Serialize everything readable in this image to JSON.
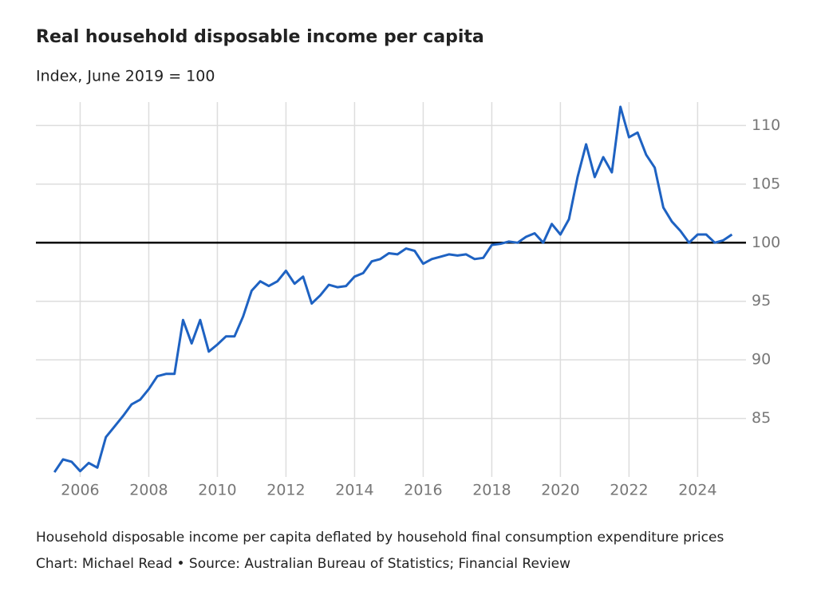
{
  "chart_data": {
    "type": "line",
    "title": "Real household disposable income per capita",
    "subtitle": "Index, June 2019 = 100",
    "notes": [
      "Household disposable income per capita deflated by household final consumption expenditure prices",
      "Chart: Michael Read • Source: Australian Bureau of Statistics; Financial Review"
    ],
    "x": [
      2005.25,
      2005.5,
      2005.75,
      2006,
      2006.25,
      2006.5,
      2006.75,
      2007,
      2007.25,
      2007.5,
      2007.75,
      2008,
      2008.25,
      2008.5,
      2008.75,
      2009,
      2009.25,
      2009.5,
      2009.75,
      2010,
      2010.25,
      2010.5,
      2010.75,
      2011,
      2011.25,
      2011.5,
      2011.75,
      2012,
      2012.25,
      2012.5,
      2012.75,
      2013,
      2013.25,
      2013.5,
      2013.75,
      2014,
      2014.25,
      2014.5,
      2014.75,
      2015,
      2015.25,
      2015.5,
      2015.75,
      2016,
      2016.25,
      2016.5,
      2016.75,
      2017,
      2017.25,
      2017.5,
      2017.75,
      2018,
      2018.25,
      2018.5,
      2018.75,
      2019,
      2019.25,
      2019.5,
      2019.75,
      2020,
      2020.25,
      2020.5,
      2020.75,
      2021,
      2021.25,
      2021.5,
      2021.75,
      2022,
      2022.25,
      2022.5,
      2022.75,
      2023,
      2023.25,
      2023.5,
      2023.75,
      2024,
      2024.25,
      2024.5,
      2024.75,
      2025
    ],
    "values": [
      80.4,
      81.5,
      81.3,
      80.5,
      81.2,
      80.8,
      83.4,
      84.3,
      85.2,
      86.2,
      86.6,
      87.5,
      88.6,
      88.8,
      88.8,
      93.4,
      91.4,
      93.4,
      90.7,
      91.3,
      92.0,
      92.0,
      93.7,
      95.9,
      96.7,
      96.3,
      96.7,
      97.6,
      96.5,
      97.1,
      94.8,
      95.5,
      96.4,
      96.2,
      96.3,
      97.1,
      97.4,
      98.4,
      98.6,
      99.1,
      99.0,
      99.5,
      99.3,
      98.2,
      98.6,
      98.8,
      99.0,
      98.9,
      99.0,
      98.6,
      98.7,
      99.8,
      99.9,
      100.1,
      100.0,
      100.5,
      100.8,
      100.0,
      101.6,
      100.7,
      102.0,
      105.6,
      108.4,
      105.6,
      107.3,
      106.0,
      111.6,
      109.0,
      109.4,
      107.5,
      106.4,
      103.0,
      101.8,
      101.0,
      100.0,
      100.7,
      100.7,
      100.0,
      100.2,
      100.7
    ],
    "color": "#1e62c2",
    "reference_line": 100,
    "xlim": [
      2004.71,
      2025.41
    ],
    "ylim": [
      80,
      112
    ],
    "xticks": [
      2006,
      2008,
      2010,
      2012,
      2014,
      2016,
      2018,
      2020,
      2022,
      2024
    ],
    "yticks": [
      85,
      90,
      95,
      100,
      105,
      110
    ],
    "grid": true
  }
}
